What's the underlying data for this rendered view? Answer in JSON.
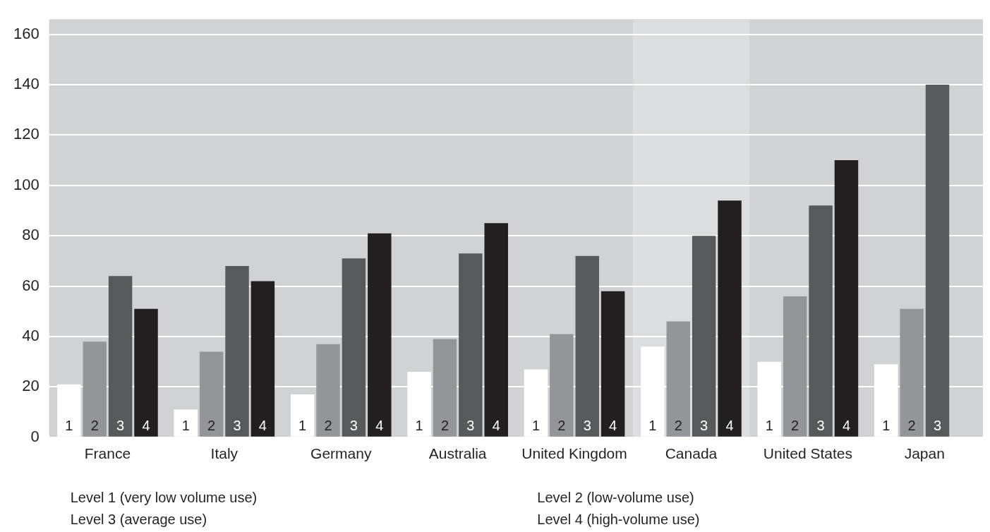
{
  "chart_data": {
    "type": "bar",
    "categories": [
      "France",
      "Italy",
      "Germany",
      "Australia",
      "United Kingdom",
      "Canada",
      "United States",
      "Japan"
    ],
    "series": [
      {
        "name": "1",
        "color": "#ffffff",
        "values": [
          21,
          11,
          17,
          26,
          27,
          36,
          30,
          29
        ]
      },
      {
        "name": "2",
        "color": "#939598",
        "values": [
          38,
          34,
          37,
          39,
          41,
          46,
          56,
          51
        ]
      },
      {
        "name": "3",
        "color": "#58595b",
        "values": [
          64,
          68,
          71,
          73,
          72,
          80,
          92,
          140
        ]
      },
      {
        "name": "4",
        "color": "#231f20",
        "values": [
          51,
          62,
          81,
          85,
          58,
          94,
          110,
          null
        ]
      }
    ],
    "ylim": [
      0,
      166
    ],
    "yticks": [
      0,
      20,
      40,
      60,
      80,
      100,
      120,
      140,
      160
    ],
    "bands": [
      {
        "axis": "x",
        "from": "Canada",
        "to": "Canada",
        "color": "#dcdddf"
      }
    ],
    "annotations": [
      "Level 1 (very low volume use)",
      "Level 2 (low-volume use)",
      "Level 3 (average use)",
      "Level 4 (high-volume use)"
    ],
    "grid": "y"
  }
}
